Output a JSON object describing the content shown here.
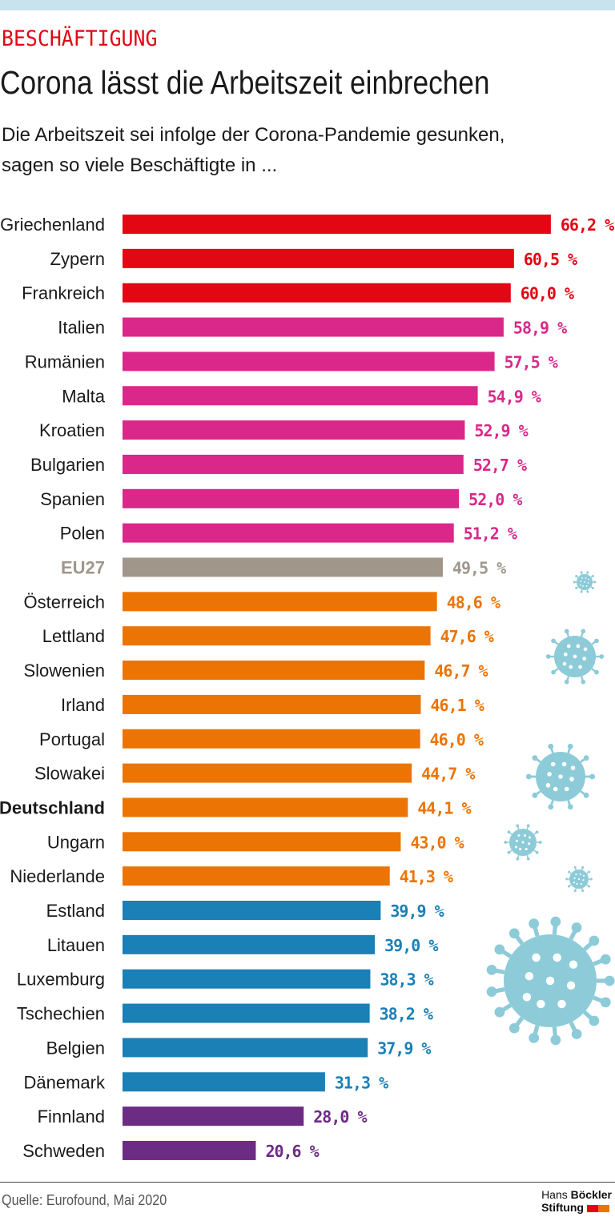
{
  "header": {
    "kicker": "BESCHÄFTIGUNG",
    "title": "Corona lässt die Arbeitszeit einbrechen",
    "subtitle_line1": "Die Arbeitszeit sei infolge der Corona-Pandemie gesunken,",
    "subtitle_line2": "sagen so viele Beschäftigte in ..."
  },
  "footer": {
    "source": "Quelle: Eurofound, Mai 2020",
    "logo_line1_a": "Hans",
    "logo_line1_b": "Böckler",
    "logo_line2": "Stiftung",
    "logo_colors": [
      "#e30613",
      "#ec7404"
    ]
  },
  "colors": {
    "red": "#e30613",
    "magenta": "#d9288a",
    "gray": "#a0968a",
    "orange": "#ec7404",
    "blue": "#1a80b6",
    "purple": "#6d2c83",
    "virus": "#8dcbd8",
    "topbar": "#c9e3ee"
  },
  "chart_data": {
    "type": "bar",
    "orientation": "horizontal",
    "unit": "%",
    "xlim": [
      0,
      100
    ],
    "grid": false,
    "categories": [
      "Griechenland",
      "Zypern",
      "Frankreich",
      "Italien",
      "Rumänien",
      "Malta",
      "Kroatien",
      "Bulgarien",
      "Spanien",
      "Polen",
      "EU27",
      "Österreich",
      "Lettland",
      "Slowenien",
      "Irland",
      "Portugal",
      "Slowakei",
      "Deutschland",
      "Ungarn",
      "Niederlande",
      "Estland",
      "Litauen",
      "Luxemburg",
      "Tschechien",
      "Belgien",
      "Dänemark",
      "Finnland",
      "Schweden"
    ],
    "values": [
      66.2,
      60.5,
      60.0,
      58.9,
      57.5,
      54.9,
      52.9,
      52.7,
      52.0,
      51.2,
      49.5,
      48.6,
      47.6,
      46.7,
      46.1,
      46.0,
      44.7,
      44.1,
      43.0,
      41.3,
      39.9,
      39.0,
      38.3,
      38.2,
      37.9,
      31.3,
      28.0,
      20.6
    ],
    "value_labels": [
      "66,2 %",
      "60,5 %",
      "60,0 %",
      "58,9 %",
      "57,5 %",
      "54,9 %",
      "52,9 %",
      "52,7 %",
      "52,0 %",
      "51,2 %",
      "49,5 %",
      "48,6 %",
      "47,6 %",
      "46,7 %",
      "46,1 %",
      "46,0 %",
      "44,7 %",
      "44,1 %",
      "43,0 %",
      "41,3 %",
      "39,9 %",
      "39,0 %",
      "38,3 %",
      "38,2 %",
      "37,9 %",
      "31,3 %",
      "28,0 %",
      "20,6 %"
    ],
    "bar_colors": [
      "red",
      "red",
      "red",
      "magenta",
      "magenta",
      "magenta",
      "magenta",
      "magenta",
      "magenta",
      "magenta",
      "gray",
      "orange",
      "orange",
      "orange",
      "orange",
      "orange",
      "orange",
      "orange",
      "orange",
      "orange",
      "blue",
      "blue",
      "blue",
      "blue",
      "blue",
      "blue",
      "purple",
      "purple"
    ],
    "highlighted": [
      "Deutschland",
      "EU27"
    ]
  }
}
